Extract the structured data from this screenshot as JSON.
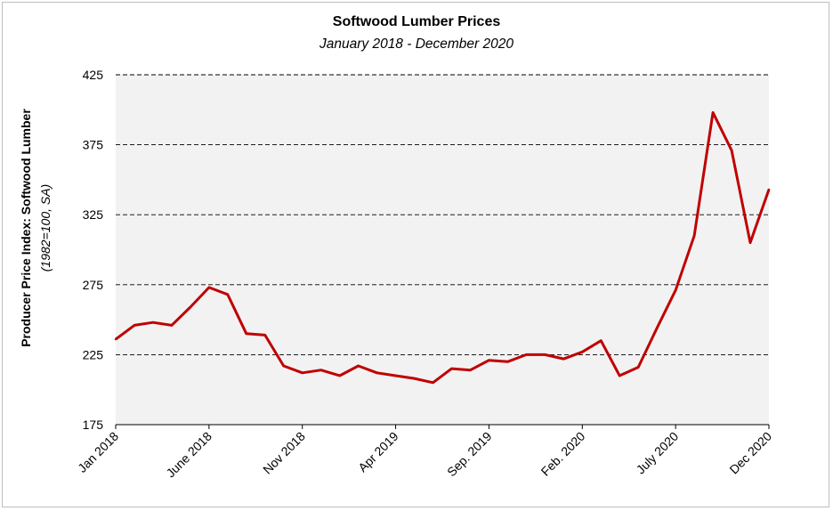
{
  "chart_data": {
    "type": "line",
    "title": "Softwood Lumber Prices",
    "subtitle": "January 2018 - December 2020",
    "ylabel": "Producer Price Index: Softwood Lumber",
    "ylabel_sub": "(1982=100, SA)",
    "xlabel": "",
    "ylim": [
      175,
      425
    ],
    "yticks": [
      175,
      225,
      275,
      325,
      375,
      425
    ],
    "grid": "horizontal-dashed",
    "xtick_labels": [
      {
        "index": 0,
        "label": "Jan 2018"
      },
      {
        "index": 5,
        "label": "June 2018"
      },
      {
        "index": 10,
        "label": "Nov 2018"
      },
      {
        "index": 15,
        "label": "Apr 2019"
      },
      {
        "index": 20,
        "label": "Sep. 2019"
      },
      {
        "index": 25,
        "label": "Feb. 2020"
      },
      {
        "index": 30,
        "label": "July 2020"
      },
      {
        "index": 35,
        "label": "Dec 2020"
      }
    ],
    "series": [
      {
        "color": "#c00000",
        "values": [
          236,
          246,
          248,
          246,
          259,
          273,
          268,
          240,
          239,
          217,
          212,
          214,
          210,
          217,
          212,
          210,
          208,
          205,
          215,
          214,
          221,
          220,
          225,
          225,
          222,
          227,
          235,
          210,
          216,
          244,
          271,
          310,
          398,
          371,
          305,
          343
        ]
      }
    ]
  }
}
